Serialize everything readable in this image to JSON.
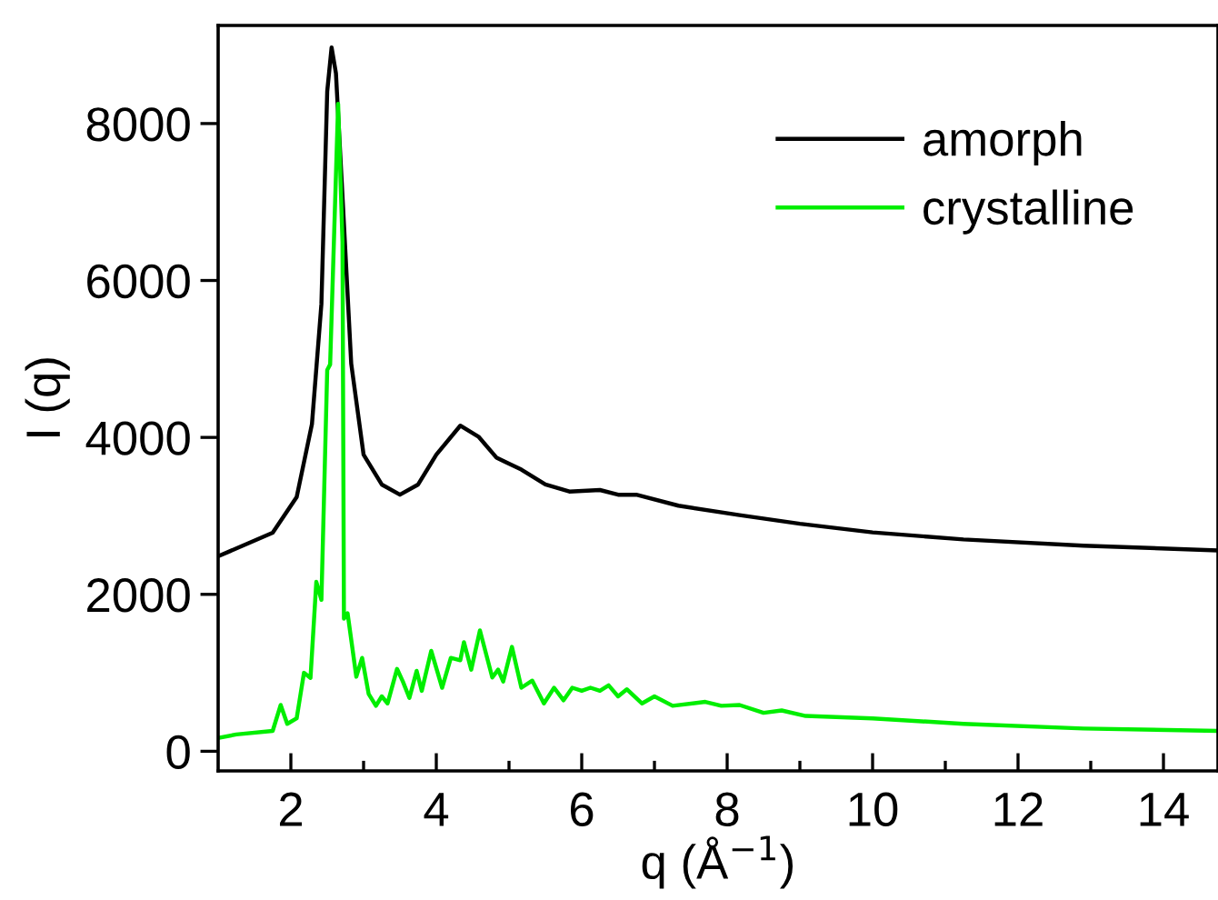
{
  "chart_data": {
    "type": "line",
    "xlabel": "q (Å$^{−1}$)",
    "ylabel": "I (q)",
    "xlim": [
      1,
      14.75
    ],
    "ylim": [
      -250,
      9250
    ],
    "xticks": [
      2,
      {
        "value": 3,
        "label": null
      },
      4,
      {
        "value": 5,
        "label": null
      },
      6,
      {
        "value": 7,
        "label": null
      },
      8,
      {
        "value": 9,
        "label": null
      },
      10,
      {
        "value": 11,
        "label": null
      },
      12,
      {
        "value": 13,
        "label": null
      },
      14
    ],
    "yticks": [
      0,
      2000,
      4000,
      6000,
      8000
    ],
    "grid": false,
    "legend": "top right",
    "marker": "none",
    "line_style": "solid",
    "series": [
      {
        "name": "amorph",
        "color": "#000000",
        "x": [
          1.0,
          1.75,
          2.08,
          2.29,
          2.42,
          2.5,
          2.56,
          2.62,
          2.7,
          2.83,
          3.0,
          3.25,
          3.5,
          3.75,
          4.0,
          4.33,
          4.58,
          4.83,
          5.17,
          5.5,
          5.83,
          6.25,
          6.5,
          6.75,
          7.33,
          8.17,
          9.0,
          10.0,
          11.25,
          12.9,
          14.75
        ],
        "values": [
          2485,
          2785,
          3240,
          4170,
          5700,
          8410,
          8970,
          8640,
          7250,
          4940,
          3780,
          3400,
          3270,
          3400,
          3780,
          4150,
          4010,
          3740,
          3590,
          3400,
          3310,
          3330,
          3270,
          3270,
          3130,
          3010,
          2900,
          2790,
          2700,
          2620,
          2560
        ]
      },
      {
        "name": "crystalline",
        "color": "#00ee00",
        "x": [
          1.0,
          1.25,
          1.75,
          1.86,
          1.95,
          2.08,
          2.18,
          2.27,
          2.35,
          2.42,
          2.5,
          2.54,
          2.65,
          2.71,
          2.73,
          2.78,
          2.9,
          2.98,
          3.07,
          3.17,
          3.25,
          3.33,
          3.46,
          3.54,
          3.63,
          3.73,
          3.8,
          3.93,
          4.08,
          4.2,
          4.33,
          4.38,
          4.48,
          4.6,
          4.77,
          4.85,
          4.92,
          5.04,
          5.17,
          5.32,
          5.48,
          5.62,
          5.75,
          5.87,
          6.0,
          6.12,
          6.25,
          6.37,
          6.5,
          6.62,
          6.83,
          7.0,
          7.25,
          7.7,
          7.92,
          8.17,
          8.5,
          8.75,
          9.08,
          10.0,
          11.25,
          12.9,
          14.75
        ],
        "values": [
          170,
          215,
          260,
          590,
          350,
          420,
          1000,
          935,
          2160,
          1930,
          4860,
          4930,
          8250,
          6490,
          1690,
          1760,
          950,
          1190,
          730,
          580,
          700,
          610,
          1050,
          890,
          680,
          1025,
          770,
          1280,
          810,
          1190,
          1160,
          1390,
          1040,
          1540,
          940,
          1040,
          890,
          1330,
          810,
          900,
          610,
          810,
          650,
          810,
          770,
          810,
          770,
          840,
          700,
          790,
          610,
          700,
          580,
          630,
          580,
          590,
          490,
          520,
          450,
          420,
          350,
          290,
          260
        ]
      }
    ]
  }
}
